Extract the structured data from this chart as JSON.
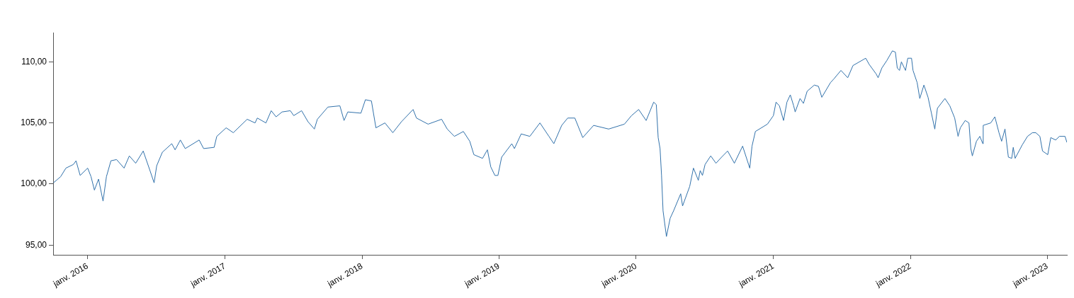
{
  "chart_data": {
    "type": "line",
    "xlim": [
      "2015-10-01",
      "2023-02-22"
    ],
    "ylim": [
      94.2,
      112.4
    ],
    "xticks": [
      {
        "value": "2016-01-01",
        "label": "janv. 2016"
      },
      {
        "value": "2017-01-01",
        "label": "janv. 2017"
      },
      {
        "value": "2018-01-01",
        "label": "janv. 2018"
      },
      {
        "value": "2019-01-01",
        "label": "janv. 2019"
      },
      {
        "value": "2020-01-01",
        "label": "janv. 2020"
      },
      {
        "value": "2021-01-01",
        "label": "janv. 2021"
      },
      {
        "value": "2022-01-01",
        "label": "janv. 2022"
      },
      {
        "value": "2023-01-01",
        "label": "janv. 2023"
      }
    ],
    "yticks": [
      {
        "value": 95,
        "label": "95,00"
      },
      {
        "value": 100,
        "label": "100,00"
      },
      {
        "value": 105,
        "label": "105,00"
      },
      {
        "value": 110,
        "label": "110,00"
      }
    ],
    "grid": false,
    "legend": false,
    "marker": "none",
    "line_style": "solid",
    "x": [
      "2015-10-02",
      "2015-10-21",
      "2015-11-04",
      "2015-11-24",
      "2015-12-01",
      "2015-12-12",
      "2016-01-01",
      "2016-01-10",
      "2016-01-19",
      "2016-01-30",
      "2016-02-11",
      "2016-02-20",
      "2016-03-03",
      "2016-03-18",
      "2016-04-07",
      "2016-04-21",
      "2016-05-08",
      "2016-05-28",
      "2016-06-15",
      "2016-06-26",
      "2016-07-03",
      "2016-07-18",
      "2016-08-12",
      "2016-08-21",
      "2016-09-04",
      "2016-09-17",
      "2016-10-24",
      "2016-11-05",
      "2016-12-03",
      "2016-12-10",
      "2017-01-04",
      "2017-01-23",
      "2017-03-01",
      "2017-03-22",
      "2017-03-28",
      "2017-04-20",
      "2017-05-04",
      "2017-05-17",
      "2017-06-02",
      "2017-06-24",
      "2017-07-03",
      "2017-07-24",
      "2017-08-10",
      "2017-08-27",
      "2017-09-04",
      "2017-10-02",
      "2017-11-03",
      "2017-11-14",
      "2017-11-24",
      "2017-12-29",
      "2018-01-10",
      "2018-01-26",
      "2018-02-07",
      "2018-03-03",
      "2018-03-24",
      "2018-04-16",
      "2018-05-17",
      "2018-05-26",
      "2018-06-26",
      "2018-08-01",
      "2018-08-16",
      "2018-09-04",
      "2018-09-28",
      "2018-10-15",
      "2018-10-26",
      "2018-11-18",
      "2018-12-01",
      "2018-12-10",
      "2018-12-21",
      "2018-12-29",
      "2019-01-08",
      "2019-02-04",
      "2019-02-11",
      "2019-03-01",
      "2019-03-24",
      "2019-04-20",
      "2019-05-14",
      "2019-05-27",
      "2019-06-17",
      "2019-07-03",
      "2019-07-22",
      "2019-08-12",
      "2019-09-10",
      "2019-10-20",
      "2019-12-01",
      "2019-12-20",
      "2020-01-08",
      "2020-01-28",
      "2020-02-17",
      "2020-02-24",
      "2020-02-29",
      "2020-03-05",
      "2020-03-09",
      "2020-03-13",
      "2020-03-22",
      "2020-04-01",
      "2020-04-10",
      "2020-04-29",
      "2020-05-04",
      "2020-05-23",
      "2020-06-02",
      "2020-06-15",
      "2020-06-20",
      "2020-06-26",
      "2020-07-03",
      "2020-07-18",
      "2020-08-01",
      "2020-08-16",
      "2020-09-01",
      "2020-09-19",
      "2020-10-11",
      "2020-10-30",
      "2020-11-05",
      "2020-11-14",
      "2020-12-16",
      "2021-01-01",
      "2021-01-08",
      "2021-01-17",
      "2021-01-28",
      "2021-02-06",
      "2021-02-15",
      "2021-02-24",
      "2021-02-28",
      "2021-03-13",
      "2021-03-22",
      "2021-04-01",
      "2021-04-20",
      "2021-05-01",
      "2021-05-10",
      "2021-06-02",
      "2021-06-11",
      "2021-06-30",
      "2021-07-18",
      "2021-08-01",
      "2021-09-04",
      "2021-09-13",
      "2021-10-02",
      "2021-10-07",
      "2021-10-17",
      "2021-10-30",
      "2021-11-14",
      "2021-11-22",
      "2021-11-27",
      "2021-12-03",
      "2021-12-08",
      "2021-12-19",
      "2021-12-25",
      "2022-01-04",
      "2022-01-08",
      "2022-01-19",
      "2022-01-26",
      "2022-02-06",
      "2022-02-17",
      "2022-02-26",
      "2022-03-07",
      "2022-03-14",
      "2022-04-03",
      "2022-04-16",
      "2022-04-29",
      "2022-05-08",
      "2022-05-14",
      "2022-05-27",
      "2022-06-06",
      "2022-06-11",
      "2022-06-15",
      "2022-06-26",
      "2022-07-05",
      "2022-07-13",
      "2022-07-14",
      "2022-08-03",
      "2022-08-14",
      "2022-08-25",
      "2022-09-01",
      "2022-09-10",
      "2022-09-19",
      "2022-09-28",
      "2022-10-02",
      "2022-10-07",
      "2022-10-26",
      "2022-11-09",
      "2022-11-22",
      "2022-12-01",
      "2022-12-12",
      "2022-12-19",
      "2023-01-02",
      "2023-01-10",
      "2023-01-23",
      "2023-02-02",
      "2023-02-17",
      "2023-02-22"
    ],
    "series": [
      {
        "color": "#3272ab",
        "values": [
          100.1,
          100.6,
          101.3,
          101.6,
          101.9,
          100.7,
          101.3,
          100.6,
          99.5,
          100.4,
          98.6,
          100.6,
          101.9,
          102.0,
          101.3,
          102.3,
          101.7,
          102.7,
          101.1,
          100.1,
          101.5,
          102.6,
          103.3,
          102.8,
          103.6,
          102.9,
          103.6,
          102.9,
          103.0,
          103.9,
          104.6,
          104.2,
          105.3,
          105.0,
          105.4,
          105.0,
          106.0,
          105.5,
          105.9,
          106.0,
          105.6,
          106.0,
          105.1,
          104.5,
          105.3,
          106.3,
          106.4,
          105.2,
          105.9,
          105.8,
          106.9,
          106.8,
          104.6,
          105.0,
          104.2,
          105.1,
          106.1,
          105.4,
          104.9,
          105.3,
          104.5,
          103.9,
          104.3,
          103.5,
          102.4,
          102.1,
          102.8,
          101.4,
          100.7,
          100.7,
          102.2,
          103.3,
          102.9,
          104.1,
          103.9,
          105.0,
          103.9,
          103.3,
          104.8,
          105.4,
          105.4,
          103.8,
          104.8,
          104.5,
          104.9,
          105.6,
          106.1,
          105.2,
          106.7,
          106.5,
          103.8,
          102.9,
          100.7,
          97.8,
          95.7,
          97.2,
          97.8,
          99.2,
          98.2,
          99.8,
          101.3,
          100.3,
          101.1,
          100.7,
          101.6,
          102.3,
          101.7,
          102.2,
          102.7,
          101.7,
          103.1,
          101.3,
          103.1,
          104.3,
          104.9,
          105.6,
          106.7,
          106.4,
          105.2,
          106.7,
          107.3,
          106.4,
          105.9,
          107.0,
          106.6,
          107.6,
          108.1,
          108.0,
          107.1,
          108.3,
          108.6,
          109.3,
          108.7,
          109.7,
          110.3,
          109.8,
          109.0,
          108.7,
          109.5,
          110.1,
          110.9,
          110.8,
          109.5,
          109.3,
          110.0,
          109.3,
          110.3,
          110.3,
          109.3,
          108.3,
          107.0,
          108.1,
          107.1,
          105.8,
          104.5,
          106.2,
          107.0,
          106.4,
          105.4,
          103.9,
          104.6,
          105.2,
          105.0,
          102.9,
          102.3,
          103.5,
          103.9,
          103.3,
          104.8,
          105.0,
          105.5,
          104.2,
          103.5,
          104.5,
          102.2,
          102.1,
          103.0,
          102.1,
          103.2,
          103.9,
          104.2,
          104.2,
          103.9,
          102.7,
          102.4,
          103.8,
          103.6,
          103.9,
          103.9,
          103.4
        ]
      }
    ]
  }
}
